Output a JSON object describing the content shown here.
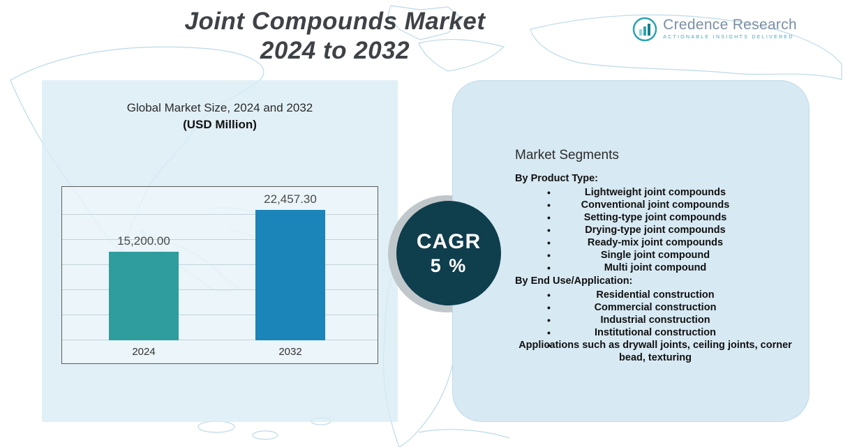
{
  "header": {
    "title_line1": "Joint Compounds Market",
    "title_line2": "2024 to 2032",
    "logo": {
      "name": "Credence Research",
      "tagline": "Actionable Insights Delivered"
    }
  },
  "chart_data": {
    "type": "bar",
    "title": "Global Market Size, 2024 and 2032",
    "subtitle": "(USD Million)",
    "categories": [
      "2024",
      "2032"
    ],
    "values": [
      15200.0,
      22457.3
    ],
    "value_labels": [
      "15,200.00",
      "22,457.30"
    ],
    "bar_colors": [
      "#2f9d9d",
      "#1b84b8"
    ],
    "xlabel": "",
    "ylabel": "",
    "ylim": [
      0,
      22457.3
    ],
    "grid": true,
    "legend": false
  },
  "cagr": {
    "line1": "CAGR",
    "line2": "5 %"
  },
  "segments": {
    "heading": "Market Segments",
    "groups": [
      {
        "title": "By Product Type:",
        "items": [
          "Lightweight joint compounds",
          "Conventional joint compounds",
          "Setting-type joint compounds",
          "Drying-type joint compounds",
          "Ready-mix joint compounds",
          "Single joint compound",
          "Multi joint compound"
        ]
      },
      {
        "title": "By End Use/Application:",
        "items": [
          "Residential construction",
          "Commercial construction",
          "Industrial construction",
          "Institutional construction",
          "Applications such as drywall joints, ceiling joints, corner bead, texturing"
        ]
      }
    ]
  }
}
